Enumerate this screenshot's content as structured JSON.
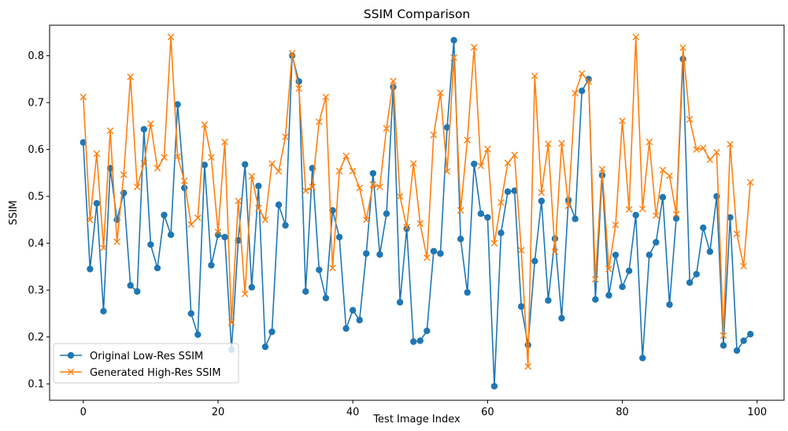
{
  "chart_data": {
    "type": "line",
    "title": "SSIM Comparison",
    "xlabel": "Test Image Index",
    "ylabel": "SSIM",
    "xlim": [
      -5,
      104
    ],
    "ylim": [
      0.065,
      0.865
    ],
    "xticks": [
      0,
      20,
      40,
      60,
      80,
      100
    ],
    "yticks": [
      0.1,
      0.2,
      0.3,
      0.4,
      0.5,
      0.6,
      0.7,
      0.8
    ],
    "grid": false,
    "legend_position": "lower-left",
    "series": [
      {
        "name": "Original Low-Res SSIM",
        "color": "#1f77b4",
        "marker": "circle",
        "values": [
          0.615,
          0.345,
          0.485,
          0.255,
          0.56,
          0.45,
          0.507,
          0.31,
          0.297,
          0.643,
          0.397,
          0.347,
          0.46,
          0.418,
          0.696,
          0.518,
          0.25,
          0.205,
          0.567,
          0.353,
          0.418,
          0.413,
          0.173,
          0.406,
          0.568,
          0.306,
          0.522,
          0.179,
          0.211,
          0.482,
          0.438,
          0.8,
          0.745,
          0.297,
          0.56,
          0.343,
          0.283,
          0.47,
          0.413,
          0.218,
          0.257,
          0.236,
          0.378,
          0.549,
          0.376,
          0.463,
          0.733,
          0.274,
          0.431,
          0.19,
          0.192,
          0.213,
          0.383,
          0.378,
          0.647,
          0.833,
          0.409,
          0.295,
          0.569,
          0.463,
          0.455,
          0.095,
          0.422,
          0.51,
          0.512,
          0.265,
          0.183,
          0.362,
          0.49,
          0.278,
          0.41,
          0.24,
          0.492,
          0.452,
          0.725,
          0.75,
          0.28,
          0.545,
          0.289,
          0.375,
          0.307,
          0.341,
          0.46,
          0.155,
          0.375,
          0.402,
          0.498,
          0.269,
          0.453,
          0.793,
          0.316,
          0.334,
          0.433,
          0.382,
          0.5,
          0.182,
          0.455,
          0.171,
          0.192,
          0.206
        ]
      },
      {
        "name": "Generated High-Res SSIM",
        "color": "#ff7f0e",
        "marker": "x",
        "values": [
          0.712,
          0.45,
          0.591,
          0.39,
          0.64,
          0.403,
          0.546,
          0.755,
          0.52,
          0.57,
          0.655,
          0.56,
          0.583,
          0.84,
          0.585,
          0.533,
          0.44,
          0.454,
          0.653,
          0.583,
          0.424,
          0.616,
          0.231,
          0.49,
          0.292,
          0.543,
          0.475,
          0.45,
          0.57,
          0.553,
          0.627,
          0.805,
          0.73,
          0.512,
          0.52,
          0.659,
          0.712,
          0.347,
          0.554,
          0.586,
          0.554,
          0.518,
          0.45,
          0.525,
          0.52,
          0.645,
          0.746,
          0.5,
          0.434,
          0.57,
          0.442,
          0.369,
          0.631,
          0.721,
          0.553,
          0.796,
          0.47,
          0.62,
          0.818,
          0.565,
          0.601,
          0.4,
          0.487,
          0.571,
          0.588,
          0.385,
          0.137,
          0.757,
          0.508,
          0.612,
          0.382,
          0.613,
          0.48,
          0.72,
          0.762,
          0.745,
          0.323,
          0.558,
          0.345,
          0.439,
          0.661,
          0.472,
          0.84,
          0.473,
          0.616,
          0.459,
          0.556,
          0.544,
          0.462,
          0.817,
          0.664,
          0.6,
          0.603,
          0.578,
          0.594,
          0.203,
          0.611,
          0.42,
          0.351,
          0.53
        ]
      }
    ]
  }
}
